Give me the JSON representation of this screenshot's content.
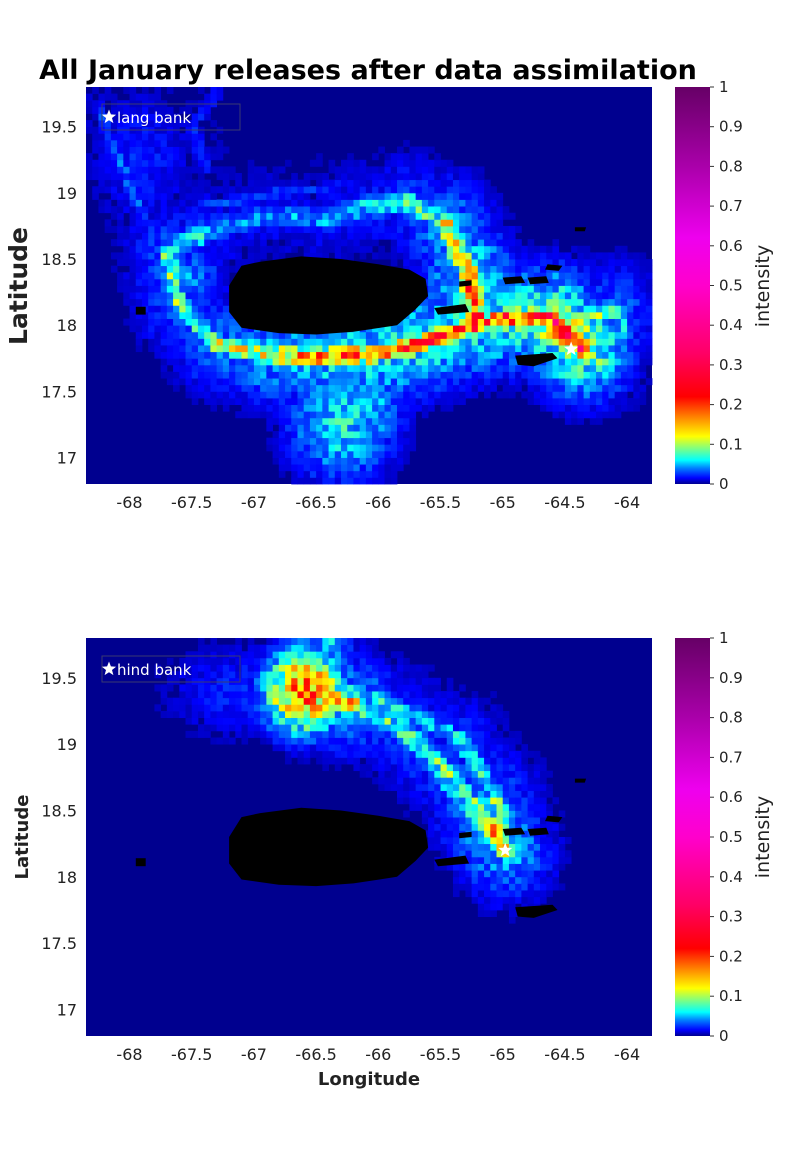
{
  "chart_data": [
    {
      "type": "heatmap",
      "title": "All January releases after data assimilation",
      "xlabel": "",
      "ylabel": "Latitude",
      "xlim": [
        -68.35,
        -63.8
      ],
      "ylim": [
        16.8,
        19.8
      ],
      "x_ticks": [
        -68,
        -67.5,
        -67,
        -66.5,
        -66,
        -65.5,
        -65,
        -64.5,
        -64
      ],
      "x_tick_labels": [
        "-68",
        "-67.5",
        "-67",
        "-66.5",
        "-66",
        "-65.5",
        "-65",
        "-64.5",
        "-64"
      ],
      "y_ticks": [
        17,
        17.5,
        18,
        18.5,
        19,
        19.5
      ],
      "y_tick_labels": [
        "17",
        "17.5",
        "18",
        "18.5",
        "19",
        "19.5"
      ],
      "colorbar": {
        "label": "intensity",
        "range": [
          0,
          1
        ],
        "ticks": [
          "0",
          "0.1",
          "0.2",
          "0.3",
          "0.4",
          "0.5",
          "0.6",
          "0.7",
          "0.8",
          "0.9",
          "1"
        ]
      },
      "legend": {
        "entry": "lang bank",
        "position": "top-left",
        "marker": "white star"
      },
      "release_site": {
        "lon": -64.45,
        "lat": 17.82
      },
      "colors": {
        "background": "#00008f",
        "land": "#000000"
      }
    },
    {
      "type": "heatmap",
      "title": "",
      "xlabel": "Longitude",
      "ylabel": "Latitude",
      "xlim": [
        -68.35,
        -63.8
      ],
      "ylim": [
        16.8,
        19.8
      ],
      "x_ticks": [
        -68,
        -67.5,
        -67,
        -66.5,
        -66,
        -65.5,
        -65,
        -64.5,
        -64
      ],
      "x_tick_labels": [
        "-68",
        "-67.5",
        "-67",
        "-66.5",
        "-66",
        "-65.5",
        "-65",
        "-64.5",
        "-64"
      ],
      "y_ticks": [
        17,
        17.5,
        18,
        18.5,
        19,
        19.5
      ],
      "y_tick_labels": [
        "17",
        "17.5",
        "18",
        "18.5",
        "19",
        "19.5"
      ],
      "colorbar": {
        "label": "intensity",
        "range": [
          0,
          1
        ],
        "ticks": [
          "0",
          "0.1",
          "0.2",
          "0.3",
          "0.4",
          "0.5",
          "0.6",
          "0.7",
          "0.8",
          "0.9",
          "1"
        ]
      },
      "legend": {
        "entry": "hind bank",
        "position": "top-left",
        "marker": "white star"
      },
      "release_site": {
        "lon": -64.98,
        "lat": 18.2
      },
      "colors": {
        "background": "#00008f",
        "land": "#000000"
      }
    }
  ]
}
